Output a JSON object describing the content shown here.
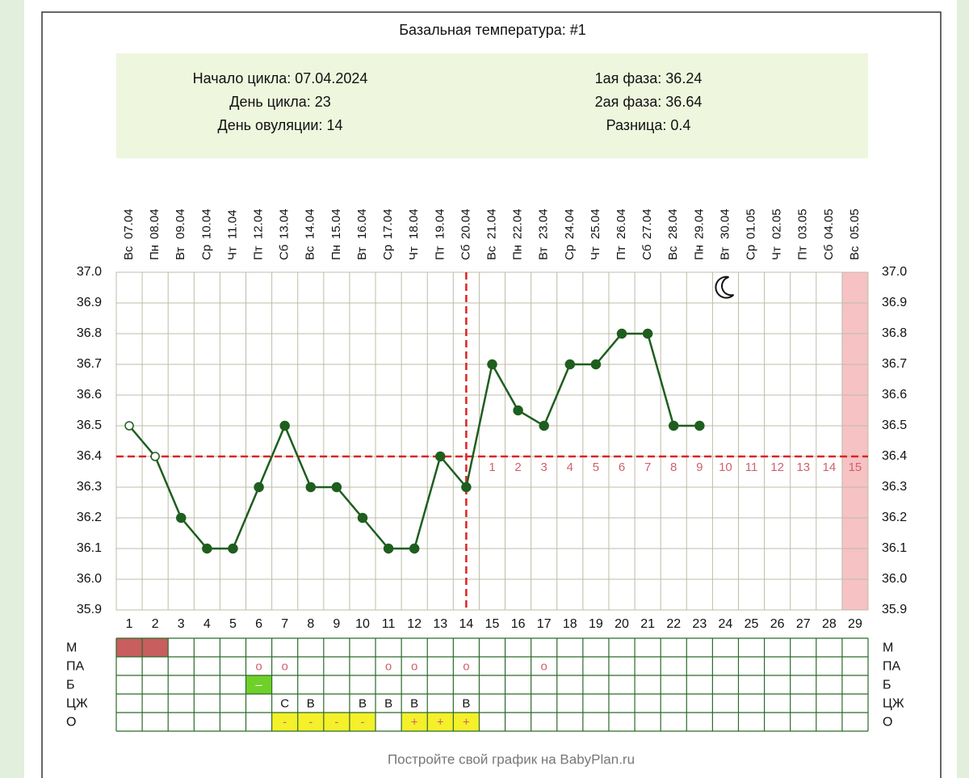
{
  "chart_data": {
    "type": "line",
    "title": "Базальная температура: #1",
    "info_left": [
      "Начало цикла: 07.04.2024",
      "День цикла: 23",
      "День овуляции: 14"
    ],
    "info_right": [
      "1ая фаза: 36.24",
      "2ая фаза: 36.64",
      "Разница: 0.4"
    ],
    "weekdays": [
      "Вс",
      "Пн",
      "Вт",
      "Ср",
      "Чт",
      "Пт",
      "Сб",
      "Вс",
      "Пн",
      "Вт",
      "Ср",
      "Чт",
      "Пт",
      "Сб",
      "Вс",
      "Пн",
      "Вт",
      "Ср",
      "Чт",
      "Пт",
      "Сб",
      "Вс",
      "Пн",
      "Вт",
      "Ср",
      "Чт",
      "Пт",
      "Сб",
      "Вс"
    ],
    "dates": [
      "07.04",
      "08.04",
      "09.04",
      "10.04",
      "11.04",
      "12.04",
      "13.04",
      "14.04",
      "15.04",
      "16.04",
      "17.04",
      "18.04",
      "19.04",
      "20.04",
      "21.04",
      "22.04",
      "23.04",
      "24.04",
      "25.04",
      "26.04",
      "27.04",
      "28.04",
      "29.04",
      "30.04",
      "01.05",
      "02.05",
      "03.05",
      "04.05",
      "05.05"
    ],
    "x": [
      1,
      2,
      3,
      4,
      5,
      6,
      7,
      8,
      9,
      10,
      11,
      12,
      13,
      14,
      15,
      16,
      17,
      18,
      19,
      20,
      21,
      22,
      23,
      24,
      25,
      26,
      27,
      28,
      29
    ],
    "series": [
      {
        "color": "#1e5e1e",
        "values": [
          36.5,
          36.4,
          36.2,
          36.1,
          36.1,
          36.3,
          36.5,
          36.3,
          36.3,
          36.2,
          36.1,
          36.1,
          36.4,
          36.3,
          36.7,
          36.55,
          36.5,
          36.7,
          36.7,
          36.8,
          36.8,
          36.5,
          36.5,
          null,
          null,
          null,
          null,
          null,
          null
        ]
      }
    ],
    "open_marker_days": [
      1,
      2
    ],
    "ylim": [
      35.9,
      37.0
    ],
    "yticks": [
      {
        "value": 37.0,
        "label": "37.0"
      },
      36.9,
      36.8,
      36.7,
      36.6,
      36.5,
      36.4,
      36.3,
      36.2,
      36.1,
      {
        "value": 36.0,
        "label": "36.0"
      },
      35.9
    ],
    "grid": true,
    "coverline": 36.4,
    "ovulation_day": 14,
    "line_color": "#dd2222",
    "luteal_days": [
      1,
      2,
      3,
      4,
      5,
      6,
      7,
      8,
      9,
      10,
      11,
      12,
      13,
      14,
      15
    ],
    "highlight_day": 29,
    "highlight_color": "#f6c2c4",
    "moon_day": 24,
    "table": {
      "rows": [
        {
          "label": "М",
          "cells": [
            {
              "day": 1,
              "fill": "#c85e5e"
            },
            {
              "day": 2,
              "fill": "#c85e5e"
            }
          ]
        },
        {
          "label": "ПА",
          "cells": [
            {
              "day": 6,
              "text": "o"
            },
            {
              "day": 7,
              "text": "o"
            },
            {
              "day": 11,
              "text": "o"
            },
            {
              "day": 12,
              "text": "o"
            },
            {
              "day": 14,
              "text": "o"
            },
            {
              "day": 17,
              "text": "o"
            }
          ]
        },
        {
          "label": "Б",
          "cells": [
            {
              "day": 6,
              "text": "–",
              "fill": "#6fd02a"
            }
          ]
        },
        {
          "label": "ЦЖ",
          "cells": [
            {
              "day": 7,
              "text": "С"
            },
            {
              "day": 8,
              "text": "В"
            },
            {
              "day": 10,
              "text": "В"
            },
            {
              "day": 11,
              "text": "В"
            },
            {
              "day": 12,
              "text": "В"
            },
            {
              "day": 14,
              "text": "В"
            }
          ]
        },
        {
          "label": "О",
          "cells": [
            {
              "day": 7,
              "text": "-",
              "fill": "#f4f02a"
            },
            {
              "day": 8,
              "text": "-",
              "fill": "#f4f02a"
            },
            {
              "day": 9,
              "text": "-",
              "fill": "#f4f02a"
            },
            {
              "day": 10,
              "text": "-",
              "fill": "#f4f02a"
            },
            {
              "day": 12,
              "text": "+",
              "fill": "#f4f02a"
            },
            {
              "day": 13,
              "text": "+",
              "fill": "#f4f02a"
            },
            {
              "day": 14,
              "text": "+",
              "fill": "#f4f02a"
            }
          ]
        }
      ]
    },
    "footer": "Постройте свой график на BabyPlan.ru"
  }
}
